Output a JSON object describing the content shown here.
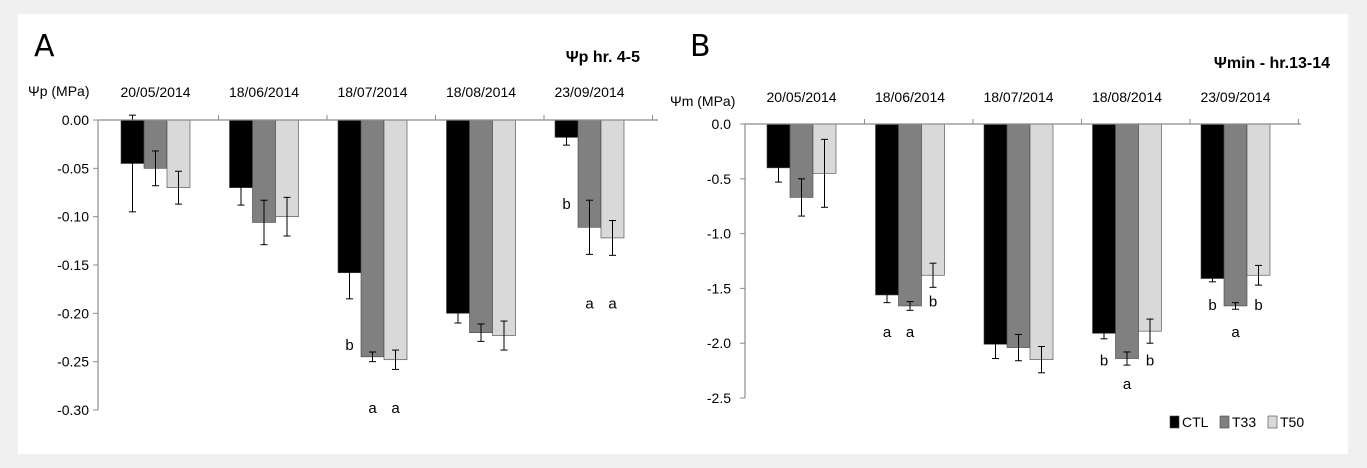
{
  "chart_data": [
    {
      "type": "bar",
      "panel": "A",
      "title": "Ψp hr. 4-5",
      "ylabel": "Ψp (MPa)",
      "ylim": [
        -0.3,
        0.0
      ],
      "yticks": [
        "0.00",
        "-0.05",
        "-0.10",
        "-0.15",
        "-0.20",
        "-0.25",
        "-0.30"
      ],
      "categories": [
        "20/05/2014",
        "18/06/2014",
        "18/07/2014",
        "18/08/2014",
        "23/09/2014"
      ],
      "series": [
        {
          "name": "CTL",
          "color": "#000000",
          "values": [
            -0.045,
            -0.07,
            -0.158,
            -0.2,
            -0.018
          ],
          "errors": [
            0.05,
            0.018,
            0.027,
            0.01,
            0.008
          ]
        },
        {
          "name": "T33",
          "color": "#808080",
          "values": [
            -0.05,
            -0.106,
            -0.245,
            -0.22,
            -0.111
          ],
          "errors": [
            0.018,
            0.023,
            0.005,
            0.009,
            0.028
          ]
        },
        {
          "name": "T50",
          "color": "#d9d9d9",
          "values": [
            -0.07,
            -0.1,
            -0.248,
            -0.223,
            -0.122
          ],
          "errors": [
            0.017,
            0.02,
            0.01,
            0.015,
            0.018
          ]
        }
      ],
      "annotations": [
        {
          "text": "b",
          "cat": 2,
          "series": 0,
          "y": -0.233
        },
        {
          "text": "a",
          "cat": 2,
          "series": 1,
          "y": -0.298
        },
        {
          "text": "a",
          "cat": 2,
          "series": 2,
          "y": -0.298
        },
        {
          "text": "b",
          "cat": 4,
          "series": 0,
          "y": -0.087
        },
        {
          "text": "a",
          "cat": 4,
          "series": 1,
          "y": -0.19
        },
        {
          "text": "a",
          "cat": 4,
          "series": 2,
          "y": -0.19
        }
      ],
      "grid": false
    },
    {
      "type": "bar",
      "panel": "B",
      "title": "Ψmin - hr.13-14",
      "ylabel": "Ψm (MPa)",
      "ylim": [
        -2.5,
        0.0
      ],
      "yticks": [
        "0.0",
        "-0.5",
        "-1.0",
        "-1.5",
        "-2.0",
        "-2.5"
      ],
      "categories": [
        "20/05/2014",
        "18/06/2014",
        "18/07/2014",
        "18/08/2014",
        "23/09/2014"
      ],
      "series": [
        {
          "name": "CTL",
          "color": "#000000",
          "values": [
            -0.4,
            -1.56,
            -2.01,
            -1.91,
            -1.41
          ],
          "errors": [
            0.13,
            0.07,
            0.13,
            0.05,
            0.03
          ]
        },
        {
          "name": "T33",
          "color": "#808080",
          "values": [
            -0.67,
            -1.66,
            -2.04,
            -2.14,
            -1.66
          ],
          "errors": [
            0.17,
            0.04,
            0.12,
            0.06,
            0.03
          ]
        },
        {
          "name": "T50",
          "color": "#d9d9d9",
          "values": [
            -0.45,
            -1.38,
            -2.15,
            -1.89,
            -1.38
          ],
          "errors": [
            0.31,
            0.11,
            0.12,
            0.11,
            0.09
          ]
        }
      ],
      "annotations": [
        {
          "text": "a",
          "cat": 1,
          "series": 0,
          "y": -1.9
        },
        {
          "text": "a",
          "cat": 1,
          "series": 1,
          "y": -1.9
        },
        {
          "text": "b",
          "cat": 1,
          "series": 2,
          "y": -1.62
        },
        {
          "text": "b",
          "cat": 3,
          "series": 0,
          "y": -2.16
        },
        {
          "text": "a",
          "cat": 3,
          "series": 1,
          "y": -2.37
        },
        {
          "text": "b",
          "cat": 3,
          "series": 2,
          "y": -2.16
        },
        {
          "text": "b",
          "cat": 4,
          "series": 0,
          "y": -1.65
        },
        {
          "text": "a",
          "cat": 4,
          "series": 1,
          "y": -1.9
        },
        {
          "text": "b",
          "cat": 4,
          "series": 2,
          "y": -1.65
        }
      ],
      "legend": {
        "position": "bottom-right",
        "entries": [
          "CTL",
          "T33",
          "T50"
        ]
      },
      "grid": false
    }
  ]
}
